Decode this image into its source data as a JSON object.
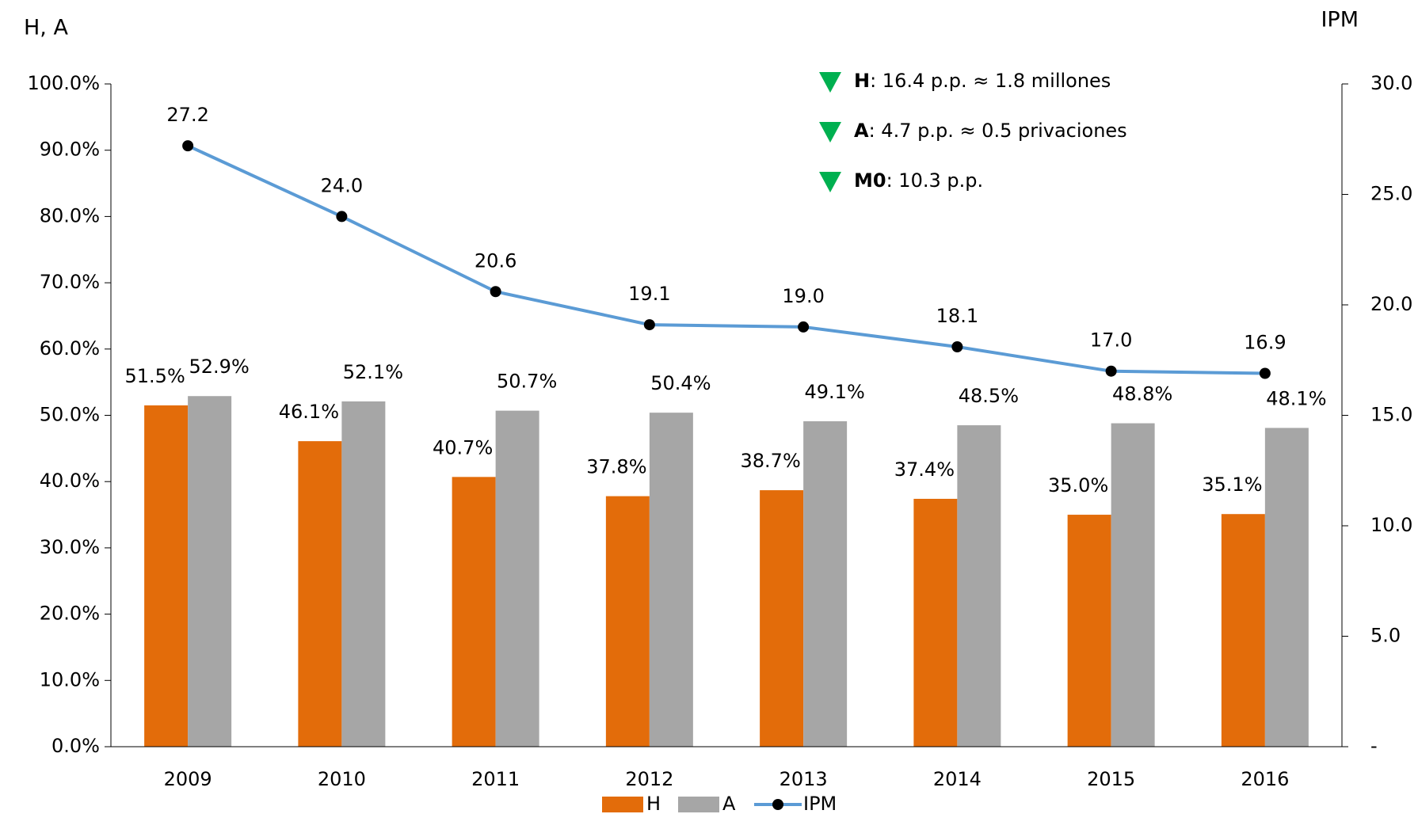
{
  "chart_data": {
    "type": "bar",
    "y_axis_label": "H, A",
    "y2_axis_label": "IPM",
    "categories": [
      "2009",
      "2010",
      "2011",
      "2012",
      "2013",
      "2014",
      "2015",
      "2016"
    ],
    "series": [
      {
        "name": "H",
        "color": "#e36c0a",
        "values": [
          51.5,
          46.1,
          40.7,
          37.8,
          38.7,
          37.4,
          35.0,
          35.1
        ],
        "value_labels": [
          "51.5%",
          "46.1%",
          "40.7%",
          "37.8%",
          "38.7%",
          "37.4%",
          "35.0%",
          "35.1%"
        ]
      },
      {
        "name": "A",
        "color": "#a6a6a6",
        "values": [
          52.9,
          52.1,
          50.7,
          50.4,
          49.1,
          48.5,
          48.8,
          48.1
        ],
        "value_labels": [
          "52.9%",
          "52.1%",
          "50.7%",
          "50.4%",
          "49.1%",
          "48.5%",
          "48.8%",
          "48.1%"
        ]
      },
      {
        "name": "IPM",
        "color": "#5b9bd5",
        "marker_color": "#000000",
        "type": "line",
        "axis": "y2",
        "values": [
          27.2,
          24.0,
          20.6,
          19.1,
          19.0,
          18.1,
          17.0,
          16.9
        ],
        "value_labels": [
          "27.2",
          "24.0",
          "20.6",
          "19.1",
          "19.0",
          "18.1",
          "17.0",
          "16.9"
        ]
      }
    ],
    "ylim": [
      0,
      100
    ],
    "yticks": [
      {
        "value": 0,
        "label": "0.0%"
      },
      {
        "value": 10,
        "label": "10.0%"
      },
      {
        "value": 20,
        "label": "20.0%"
      },
      {
        "value": 30,
        "label": "30.0%"
      },
      {
        "value": 40,
        "label": "40.0%"
      },
      {
        "value": 50,
        "label": "50.0%"
      },
      {
        "value": 60,
        "label": "60.0%"
      },
      {
        "value": 70,
        "label": "70.0%"
      },
      {
        "value": 80,
        "label": "80.0%"
      },
      {
        "value": 90,
        "label": "90.0%"
      },
      {
        "value": 100,
        "label": "100.0%"
      }
    ],
    "y2lim": [
      0,
      30
    ],
    "y2ticks": [
      {
        "value": 0,
        "label": "-"
      },
      {
        "value": 5,
        "label": "5.0"
      },
      {
        "value": 10,
        "label": "10.0"
      },
      {
        "value": 15,
        "label": "15.0"
      },
      {
        "value": 20,
        "label": "20.0"
      },
      {
        "value": 25,
        "label": "25.0"
      },
      {
        "value": 30,
        "label": "30.0"
      }
    ],
    "annotations": [
      {
        "key": "H",
        "text": ": 16.4 p.p. ≈ 1.8 millones"
      },
      {
        "key": "A",
        "text": ":   4.7 p.p. ≈ 0.5 privaciones"
      },
      {
        "key": "M0",
        "text": ": 10.3 p.p."
      }
    ],
    "annotation_marker_color": "#00b050",
    "legend": "bottom"
  }
}
